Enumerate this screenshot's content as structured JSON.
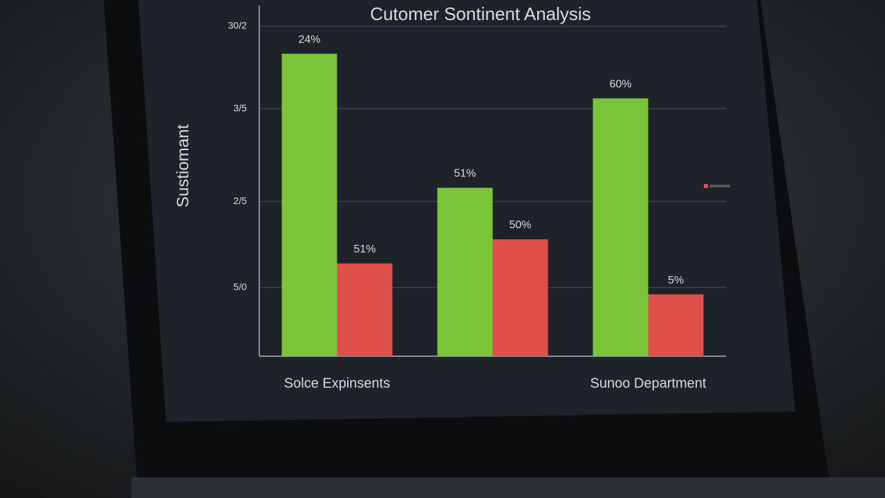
{
  "chart_data": {
    "type": "bar",
    "title": "Cutomer Sontinent Analysis",
    "y_label": "Sustiomant",
    "categories": [
      "Solce Expinsents",
      null,
      "Sunoo Department"
    ],
    "series": [
      {
        "color": "#7ac43a",
        "values": [
          88,
          49,
          75
        ]
      },
      {
        "color": "#e0504a",
        "values": [
          27,
          34,
          18
        ]
      }
    ],
    "annotations": [
      [
        "24%",
        "51%"
      ],
      [
        "51%",
        "50%"
      ],
      [
        "60%",
        "5%"
      ]
    ],
    "ylim": [
      0,
      100
    ],
    "yticks": [
      {
        "value": 20,
        "label": "5/0"
      },
      {
        "value": 45,
        "label": "2/5"
      },
      {
        "value": 72,
        "label": "3/5"
      },
      {
        "value": 96,
        "label": "30/2"
      }
    ],
    "grid": true
  }
}
